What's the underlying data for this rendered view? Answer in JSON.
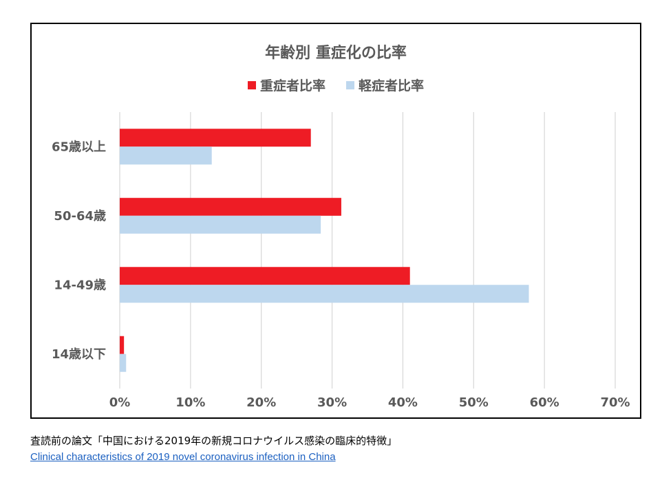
{
  "chart_data": {
    "type": "bar",
    "orientation": "horizontal",
    "title": "年齢別 重症化の比率",
    "categories": [
      "65歳以上",
      "50-64歳",
      "14-49歳",
      "14歳以下"
    ],
    "series": [
      {
        "name": "重症者比率",
        "color": "#ee1c25",
        "values": [
          27,
          31.3,
          41,
          0.6
        ]
      },
      {
        "name": "軽症者比率",
        "color": "#bdd7ee",
        "values": [
          13,
          28.4,
          57.8,
          0.9
        ]
      }
    ],
    "xlim": [
      0,
      70
    ],
    "xticks": [
      "0%",
      "10%",
      "20%",
      "30%",
      "40%",
      "50%",
      "60%",
      "70%"
    ],
    "grid": true,
    "legend_position": "top"
  },
  "caption": "査読前の論文「中国における2019年の新規コロナウイルス感染の臨床的特徴」",
  "source_link": "Clinical characteristics of 2019 novel coronavirus infection in China"
}
